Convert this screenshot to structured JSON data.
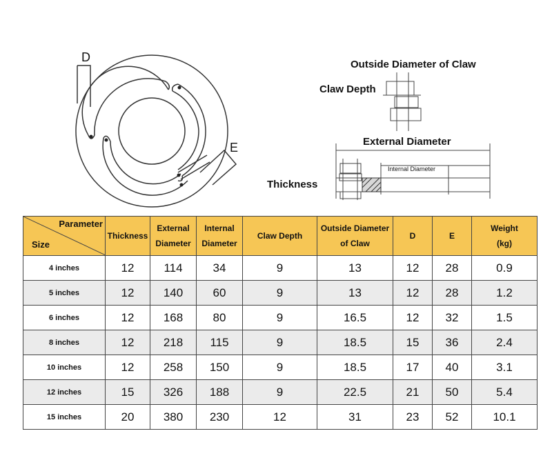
{
  "diagram_left": {
    "label_d": "D",
    "label_e": "E"
  },
  "diagram_right": {
    "outside_diameter_of_claw": "Outside Diameter of Claw",
    "claw_depth": "Claw Depth",
    "external_diameter": "External Diameter",
    "internal_diameter": "Internal Diameter",
    "thickness": "Thickness"
  },
  "table": {
    "corner_parameter": "Parameter",
    "corner_size": "Size",
    "headers": [
      [
        "Thickness"
      ],
      [
        "External",
        "Diameter"
      ],
      [
        "Internal",
        "Diameter"
      ],
      [
        "Claw Depth"
      ],
      [
        "Outside Diameter",
        "of Claw"
      ],
      [
        "D"
      ],
      [
        "E"
      ],
      [
        "Weight",
        "(kg)"
      ]
    ],
    "rows": [
      [
        "4 inches",
        "12",
        "114",
        "34",
        "9",
        "13",
        "12",
        "28",
        "0.9"
      ],
      [
        "5 inches",
        "12",
        "140",
        "60",
        "9",
        "13",
        "12",
        "28",
        "1.2"
      ],
      [
        "6 inches",
        "12",
        "168",
        "80",
        "9",
        "16.5",
        "12",
        "32",
        "1.5"
      ],
      [
        "8 inches",
        "12",
        "218",
        "115",
        "9",
        "18.5",
        "15",
        "36",
        "2.4"
      ],
      [
        "10 inches",
        "12",
        "258",
        "150",
        "9",
        "18.5",
        "17",
        "40",
        "3.1"
      ],
      [
        "12 inches",
        "15",
        "326",
        "188",
        "9",
        "22.5",
        "21",
        "50",
        "5.4"
      ],
      [
        "15 inches",
        "20",
        "380",
        "230",
        "12",
        "31",
        "23",
        "52",
        "10.1"
      ]
    ]
  },
  "colors": {
    "header_bg": "#f6c655",
    "row_alt_bg": "#ebebeb",
    "border": "#444444"
  }
}
